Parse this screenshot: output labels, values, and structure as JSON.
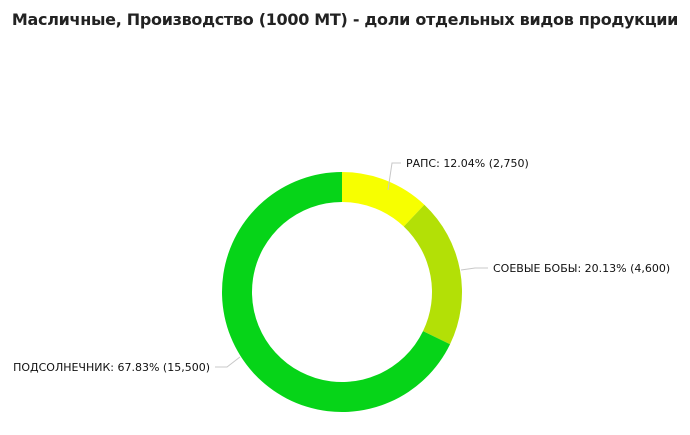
{
  "chart_data": {
    "type": "pie",
    "donut": true,
    "title": "Масличные, Производство (1000 MT) - доли отдельных видов продукции",
    "slices": [
      {
        "name": "РАПС",
        "value": 2750,
        "percent": 12.04,
        "label": "РАПС: 12.04% (2,750)",
        "color": "#f7ff00"
      },
      {
        "name": "СОЕВЫЕ БОБЫ",
        "value": 4600,
        "percent": 20.13,
        "label": "СОЕВЫЕ БОБЫ: 20.13% (4,600)",
        "color": "#b3e006"
      },
      {
        "name": "ПОДСОЛНЕЧНИК",
        "value": 15500,
        "percent": 67.83,
        "label": "ПОДСОЛНЕЧНИК: 67.83% (15,500)",
        "color": "#06d418"
      }
    ]
  }
}
